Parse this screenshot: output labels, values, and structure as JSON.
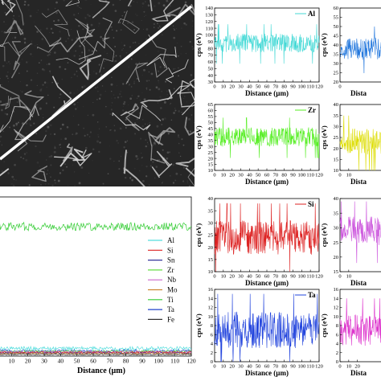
{
  "chart_data": [
    {
      "type": "line",
      "ylabel": "cps (eV)",
      "xlabel": "Distance (µm)",
      "xlim": [
        0,
        120
      ],
      "ylim": [
        0,
        70
      ],
      "xticks": [
        "10",
        "20",
        "30",
        "40",
        "50",
        "60",
        "70",
        "80",
        "90",
        "100",
        "110",
        "120"
      ],
      "yticks": [],
      "legend": [
        "Al",
        "Si",
        "Sn",
        "Zr",
        "Nb",
        "Mo",
        "Ti",
        "Ta",
        "Fe"
      ],
      "series": [
        {
          "name": "Ti",
          "color": "#33cc33",
          "mean": 57,
          "amp": 1.8
        },
        {
          "name": "Al",
          "color": "#55dddd",
          "mean": 3.4,
          "amp": 0.8
        },
        {
          "name": "Ta",
          "color": "#2244cc",
          "mean": 2.3,
          "amp": 0.5
        },
        {
          "name": "Zr",
          "color": "#66dd44",
          "mean": 2.0,
          "amp": 0.5
        },
        {
          "name": "Nb",
          "color": "#cc66cc",
          "mean": 1.8,
          "amp": 0.4
        },
        {
          "name": "Si",
          "color": "#dd2222",
          "mean": 1.6,
          "amp": 0.4
        },
        {
          "name": "Sn",
          "color": "#333399",
          "mean": 1.3,
          "amp": 0.3
        },
        {
          "name": "Mo",
          "color": "#cc8833",
          "mean": 1.1,
          "amp": 0.3
        },
        {
          "name": "Fe",
          "color": "#333333",
          "mean": 0.7,
          "amp": 0.2
        }
      ]
    },
    {
      "type": "line",
      "element": "Al",
      "color": "#44d9d6",
      "ylabel": "cps (eV)",
      "xlabel": "Distance (µm)",
      "xlim": [
        0,
        120
      ],
      "ylim": [
        30,
        140
      ],
      "yticks": [
        "30",
        "40",
        "50",
        "60",
        "70",
        "80",
        "90",
        "100",
        "110",
        "120",
        "130",
        "140"
      ],
      "xticks": [
        "0",
        "10",
        "20",
        "30",
        "40",
        "50",
        "60",
        "70",
        "80",
        "90",
        "100",
        "110",
        "120"
      ],
      "mean": 88,
      "amp": 14
    },
    {
      "type": "line",
      "element": "Zr",
      "color": "#55ee22",
      "ylabel": "cps (eV)",
      "xlabel": "Distance (µm)",
      "xlim": [
        0,
        120
      ],
      "ylim": [
        10,
        65
      ],
      "yticks": [
        "10",
        "15",
        "20",
        "25",
        "30",
        "35",
        "40",
        "45",
        "50",
        "55",
        "60",
        "65"
      ],
      "xticks": [
        "0",
        "10",
        "20",
        "30",
        "40",
        "50",
        "60",
        "70",
        "80",
        "90",
        "100",
        "110",
        "120"
      ],
      "mean": 38,
      "amp": 8
    },
    {
      "type": "line",
      "element": "Si",
      "color": "#dd2222",
      "ylabel": "cps (eV)",
      "xlabel": "Distance (µm)",
      "xlim": [
        0,
        120
      ],
      "ylim": [
        10,
        40
      ],
      "yticks": [
        "10",
        "15",
        "20",
        "25",
        "30",
        "35",
        "40"
      ],
      "xticks": [
        "0",
        "10",
        "20",
        "30",
        "40",
        "50",
        "60",
        "70",
        "80",
        "90",
        "100",
        "110",
        "120"
      ],
      "mean": 24,
      "amp": 7
    },
    {
      "type": "line",
      "element": "Ta",
      "color": "#2244dd",
      "ylabel": "cps (eV)",
      "xlabel": "Distance (µm)",
      "xlim": [
        0,
        120
      ],
      "ylim": [
        0,
        16
      ],
      "yticks": [
        "0",
        "2",
        "4",
        "6",
        "8",
        "10",
        "12",
        "14",
        "16"
      ],
      "xticks": [
        "0",
        "10",
        "20",
        "30",
        "40",
        "50",
        "60",
        "70",
        "80",
        "90",
        "100",
        "110",
        "120"
      ],
      "mean": 7,
      "amp": 4
    },
    {
      "type": "line",
      "color": "#2277dd",
      "partial": true,
      "ylabel": "cps (eV)",
      "xlabel": "Dista",
      "xlim": [
        0,
        120
      ],
      "ylim": [
        20,
        60
      ],
      "yticks": [
        "20",
        "25",
        "30",
        "35",
        "40",
        "45",
        "50",
        "55",
        "60"
      ],
      "xticks": [
        "0"
      ],
      "mean": 38,
      "amp": 6
    },
    {
      "type": "line",
      "color": "#dddd00",
      "partial": true,
      "ylabel": "cps (eV)",
      "xlabel": "Dista",
      "xlim": [
        0,
        120
      ],
      "ylim": [
        10,
        40
      ],
      "yticks": [
        "10",
        "15",
        "20",
        "25",
        "30",
        "35",
        "40"
      ],
      "xticks": [
        "0",
        "10"
      ],
      "mean": 23,
      "amp": 6
    },
    {
      "type": "line",
      "color": "#cc55dd",
      "partial": true,
      "ylabel": "cps (eV)",
      "xlabel": "Dista",
      "xlim": [
        0,
        120
      ],
      "ylim": [
        15,
        40
      ],
      "yticks": [
        "15",
        "20",
        "25",
        "30",
        "35",
        "40"
      ],
      "xticks": [
        "0",
        "10"
      ],
      "mean": 29,
      "amp": 5
    },
    {
      "type": "line",
      "color": "#dd33cc",
      "partial": true,
      "ylabel": "cps (eV)",
      "xlabel": "Dista",
      "xlim": [
        0,
        120
      ],
      "ylim": [
        0,
        16
      ],
      "yticks": [
        "0",
        "2",
        "4",
        "6",
        "8",
        "10",
        "12",
        "14",
        "16"
      ],
      "xticks": [
        "0",
        "10",
        "20"
      ],
      "mean": 7,
      "amp": 3.5
    }
  ]
}
